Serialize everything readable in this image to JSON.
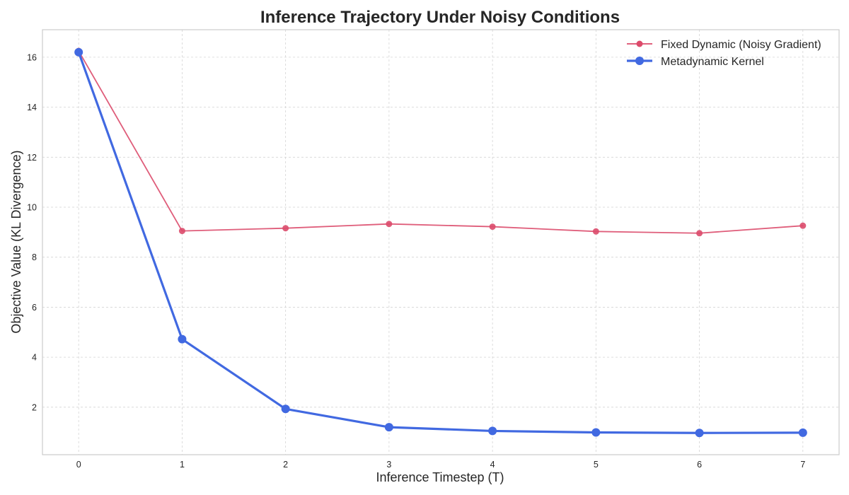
{
  "chart_data": {
    "type": "line",
    "title": "Inference Trajectory Under Noisy Conditions",
    "xlabel": "Inference Timestep (T)",
    "ylabel": "Objective Value (KL Divergence)",
    "x": [
      0,
      1,
      2,
      3,
      4,
      5,
      6,
      7
    ],
    "xlim": [
      -0.35,
      7.35
    ],
    "ylim": [
      0.1,
      17.1
    ],
    "xticks": [
      0,
      1,
      2,
      3,
      4,
      5,
      6,
      7
    ],
    "yticks": [
      2,
      4,
      6,
      8,
      10,
      12,
      14,
      16
    ],
    "grid": true,
    "legend_position": "top-right",
    "series": [
      {
        "name": "Fixed Dynamic (Noisy Gradient)",
        "values": [
          16.25,
          9.05,
          9.16,
          9.33,
          9.22,
          9.03,
          8.96,
          9.26
        ],
        "color": "#DC4B6B",
        "style": "thin-with-small-markers"
      },
      {
        "name": "Metadynamic Kernel",
        "values": [
          16.2,
          4.72,
          1.93,
          1.2,
          1.05,
          0.99,
          0.97,
          0.98
        ],
        "color": "#4169E1",
        "style": "thick-with-large-markers"
      }
    ]
  }
}
